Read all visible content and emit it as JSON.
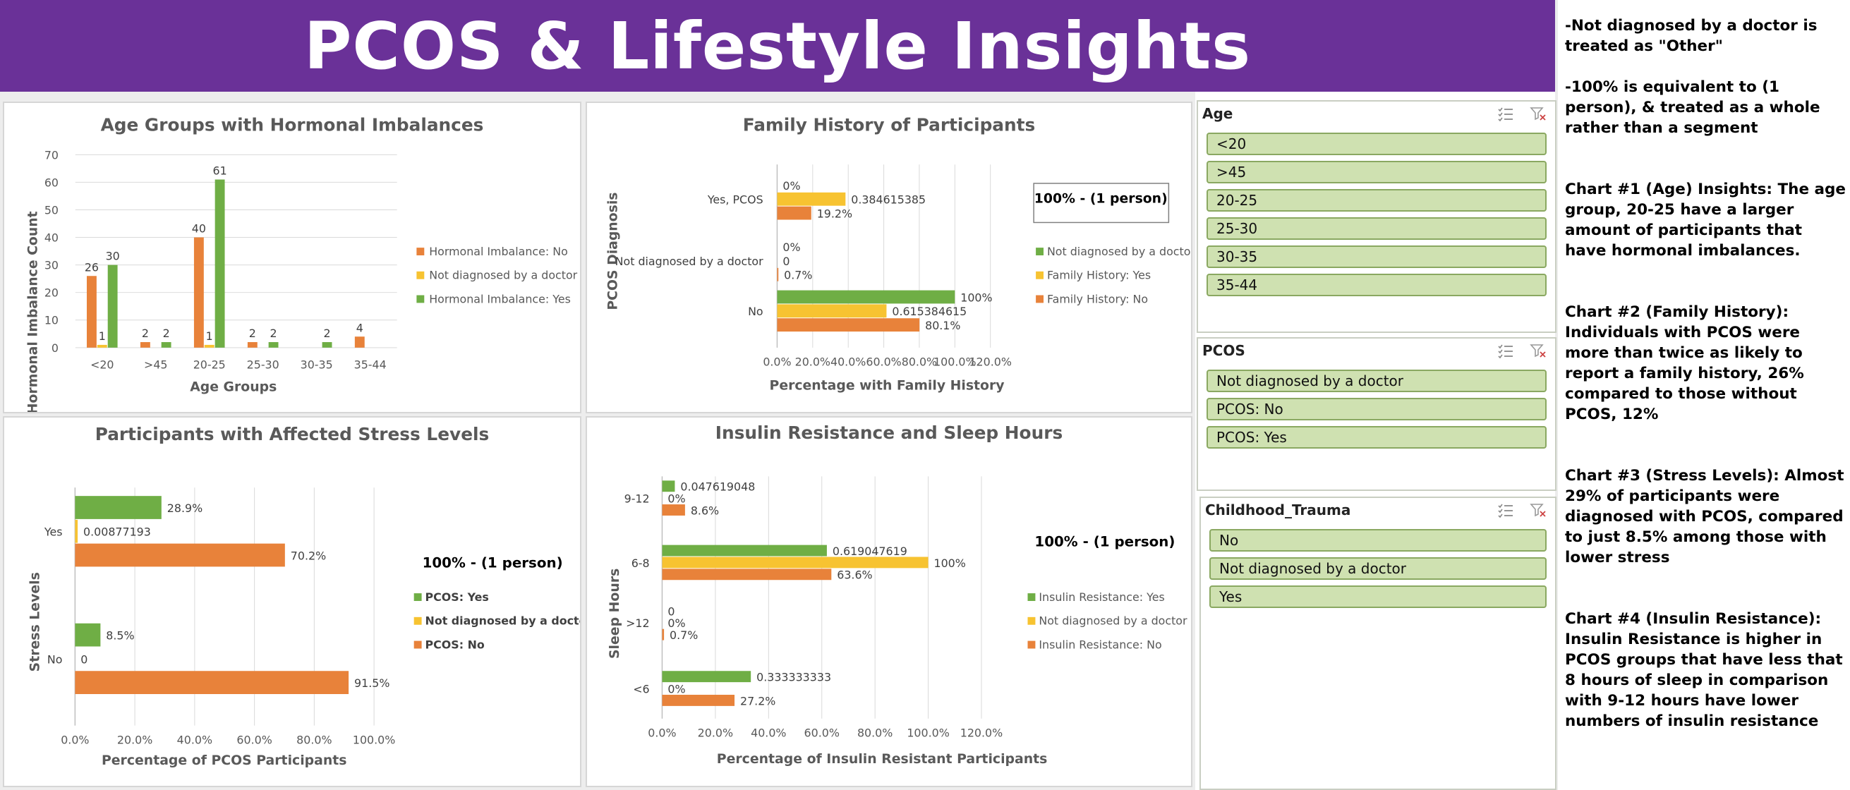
{
  "header": {
    "title": "PCOS & Lifestyle Insights"
  },
  "colors": {
    "banner": "#6a3198",
    "orange": "#e8823a",
    "yellow": "#f7c331",
    "green": "#6fae45",
    "slicer_fill": "#cfe1b1",
    "slicer_border": "#8aa861"
  },
  "charts": {
    "age": {
      "title": "Age Groups with Hormonal Imbalances",
      "xlabel": "Age Groups",
      "ylabel": "Hormonal Imbalance Count",
      "legend": [
        "Hormonal Imbalance: No",
        "Not diagnosed by a doctor",
        "Hormonal Imbalance: Yes"
      ]
    },
    "family": {
      "title": "Family History of  Participants",
      "xlabel": "Percentage with Family History",
      "ylabel": "PCOS Diagnosis",
      "note": "100% - (1 person)",
      "legend": [
        "Not diagnosed by a doctor",
        "Family History: Yes",
        "Family History: No"
      ]
    },
    "stress": {
      "title": "Participants with Affected Stress Levels",
      "xlabel": "Percentage of PCOS Participants",
      "ylabel": "Stress Levels",
      "note": "100% - (1 person)",
      "legend": [
        "PCOS: Yes",
        "Not diagnosed by a doctor",
        "PCOS: No"
      ]
    },
    "insulin": {
      "title": "Insulin Resistance and Sleep Hours",
      "xlabel": "Percentage of Insulin Resistant Participants",
      "ylabel": "Sleep Hours",
      "note": "100% - (1 person)",
      "legend": [
        "Insulin Resistance: Yes",
        "Not diagnosed by a doctor",
        "Insulin Resistance: No"
      ]
    }
  },
  "chart_data": [
    {
      "type": "bar",
      "title": "Age Groups with Hormonal Imbalances",
      "xlabel": "Age Groups",
      "ylabel": "Hormonal Imbalance Count",
      "ylim": [
        0,
        70
      ],
      "yticks": [
        0,
        10,
        20,
        30,
        40,
        50,
        60,
        70
      ],
      "categories": [
        "<20",
        ">45",
        "20-25",
        "25-30",
        "30-35",
        "35-44"
      ],
      "series": [
        {
          "name": "Hormonal Imbalance: No",
          "color": "#e8823a",
          "values": [
            26,
            2,
            40,
            2,
            null,
            4
          ]
        },
        {
          "name": "Not diagnosed by a doctor",
          "color": "#f7c331",
          "values": [
            1,
            null,
            1,
            null,
            null,
            null
          ]
        },
        {
          "name": "Hormonal Imbalance: Yes",
          "color": "#6fae45",
          "values": [
            30,
            2,
            61,
            2,
            2,
            null
          ]
        }
      ]
    },
    {
      "type": "bar",
      "orientation": "horizontal",
      "title": "Family History of  Participants",
      "xlabel": "Percentage with Family History",
      "ylabel": "PCOS Diagnosis",
      "xlim": [
        0,
        1.2
      ],
      "xticks": [
        "0.0%",
        "20.0%",
        "40.0%",
        "60.0%",
        "80.0%",
        "100.0%",
        "120.0%"
      ],
      "categories": [
        "Yes, PCOS",
        "Not diagnosed by a doctor",
        "No"
      ],
      "series": [
        {
          "name": "Not diagnosed by a doctor",
          "color": "#6fae45",
          "values": [
            0,
            0,
            1
          ],
          "labels": [
            "0%",
            "0%",
            "100%"
          ]
        },
        {
          "name": "Family History: Yes",
          "color": "#f7c331",
          "values": [
            0.384615385,
            0,
            0.615384615
          ],
          "labels": [
            "0.384615385",
            "0",
            "0.615384615"
          ]
        },
        {
          "name": "Family History: No",
          "color": "#e8823a",
          "values": [
            0.192,
            0.007,
            0.801
          ],
          "labels": [
            "19.2%",
            "0.7%",
            "80.1%"
          ]
        }
      ]
    },
    {
      "type": "bar",
      "orientation": "horizontal",
      "title": "Participants with Affected Stress Levels",
      "xlabel": "Percentage of PCOS Participants",
      "ylabel": "Stress Levels",
      "xlim": [
        0,
        1.0
      ],
      "xticks": [
        "0.0%",
        "20.0%",
        "40.0%",
        "60.0%",
        "80.0%",
        "100.0%"
      ],
      "categories": [
        "Yes",
        "No"
      ],
      "series": [
        {
          "name": "PCOS: Yes",
          "color": "#6fae45",
          "values": [
            0.289,
            0.085
          ],
          "labels": [
            "28.9%",
            "8.5%"
          ]
        },
        {
          "name": "Not diagnosed by a doctor",
          "color": "#f7c331",
          "values": [
            0.00877193,
            0
          ],
          "labels": [
            "0.00877193",
            "0"
          ]
        },
        {
          "name": "PCOS: No",
          "color": "#e8823a",
          "values": [
            0.702,
            0.915
          ],
          "labels": [
            "70.2%",
            "91.5%"
          ]
        }
      ]
    },
    {
      "type": "bar",
      "orientation": "horizontal",
      "title": "Insulin Resistance and Sleep Hours",
      "xlabel": "Percentage of Insulin Resistant Participants",
      "ylabel": "Sleep Hours",
      "xlim": [
        0,
        1.2
      ],
      "xticks": [
        "0.0%",
        "20.0%",
        "40.0%",
        "60.0%",
        "80.0%",
        "100.0%",
        "120.0%"
      ],
      "categories": [
        "9-12",
        "6-8",
        ">12",
        "<6"
      ],
      "series": [
        {
          "name": "Insulin Resistance: Yes",
          "color": "#6fae45",
          "values": [
            0.047619048,
            0.619047619,
            0,
            0.333333333
          ],
          "labels": [
            "0.047619048",
            "0.619047619",
            "0",
            "0.333333333"
          ]
        },
        {
          "name": "Not diagnosed by a doctor",
          "color": "#f7c331",
          "values": [
            0,
            1,
            0,
            0
          ],
          "labels": [
            "0%",
            "100%",
            "0%",
            "0%"
          ]
        },
        {
          "name": "Insulin Resistance: No",
          "color": "#e8823a",
          "values": [
            0.086,
            0.636,
            0.007,
            0.272
          ],
          "labels": [
            "8.6%",
            "63.6%",
            "0.7%",
            "27.2%"
          ]
        }
      ]
    }
  ],
  "slicers": {
    "age": {
      "title": "Age",
      "items": [
        "<20",
        ">45",
        "20-25",
        "25-30",
        "30-35",
        "35-44"
      ]
    },
    "pcos": {
      "title": "PCOS",
      "items": [
        "Not diagnosed by a doctor",
        "PCOS: No",
        "PCOS: Yes"
      ]
    },
    "trauma": {
      "title": "Childhood_Trauma",
      "items": [
        "No",
        "Not diagnosed by a doctor",
        "Yes"
      ]
    }
  },
  "notes": [
    "-Not diagnosed by a doctor is treated as \"Other\"",
    "-100% is equivalent to (1 person), & treated as a whole rather than a segment",
    "Chart #1 (Age) Insights:  The age group, 20-25 have a larger amount of participants that have hormonal imbalances.",
    "Chart #2 (Family History): Individuals with PCOS were more than twice as likely to report a family history, 26% compared to those without PCOS, 12%",
    "Chart #3 (Stress Levels): Almost 29% of participants were diagnosed with PCOS, compared to just 8.5% among those with lower stress",
    "Chart #4 (Insulin Resistance):\nInsulin Resistance is higher in PCOS groups that have less that 8 hours of sleep in comparison with 9-12 hours have lower numbers of insulin resistance"
  ]
}
